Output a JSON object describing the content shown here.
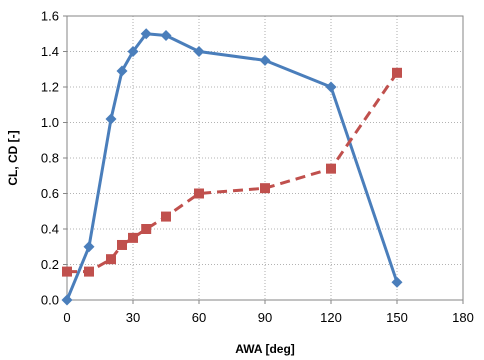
{
  "chart_data": {
    "type": "line",
    "title": "",
    "xlabel": "AWA [deg]",
    "ylabel": "CL, CD [-]",
    "xlim": [
      0,
      180
    ],
    "ylim": [
      0,
      1.6
    ],
    "xticks": [
      0,
      30,
      60,
      90,
      120,
      150,
      180
    ],
    "yticks": [
      "0.0",
      "0.2",
      "0.4",
      "0.6",
      "0.8",
      "1.0",
      "1.2",
      "1.4",
      "1.6"
    ],
    "grid": "dotted",
    "legend": "none",
    "series": [
      {
        "color": "#4a7ebb",
        "line_style": "solid",
        "marker": "diamond",
        "x": [
          0,
          10,
          20,
          25,
          30,
          36,
          45,
          60,
          90,
          120,
          150
        ],
        "y": [
          0.0,
          0.3,
          1.02,
          1.29,
          1.4,
          1.5,
          1.49,
          1.4,
          1.35,
          1.2,
          0.1
        ]
      },
      {
        "color": "#c0504d",
        "line_style": "dashed",
        "marker": "square",
        "x": [
          0,
          10,
          20,
          25,
          30,
          36,
          45,
          60,
          90,
          120,
          150
        ],
        "y": [
          0.16,
          0.16,
          0.23,
          0.31,
          0.35,
          0.4,
          0.47,
          0.6,
          0.63,
          0.74,
          1.28
        ]
      }
    ]
  }
}
